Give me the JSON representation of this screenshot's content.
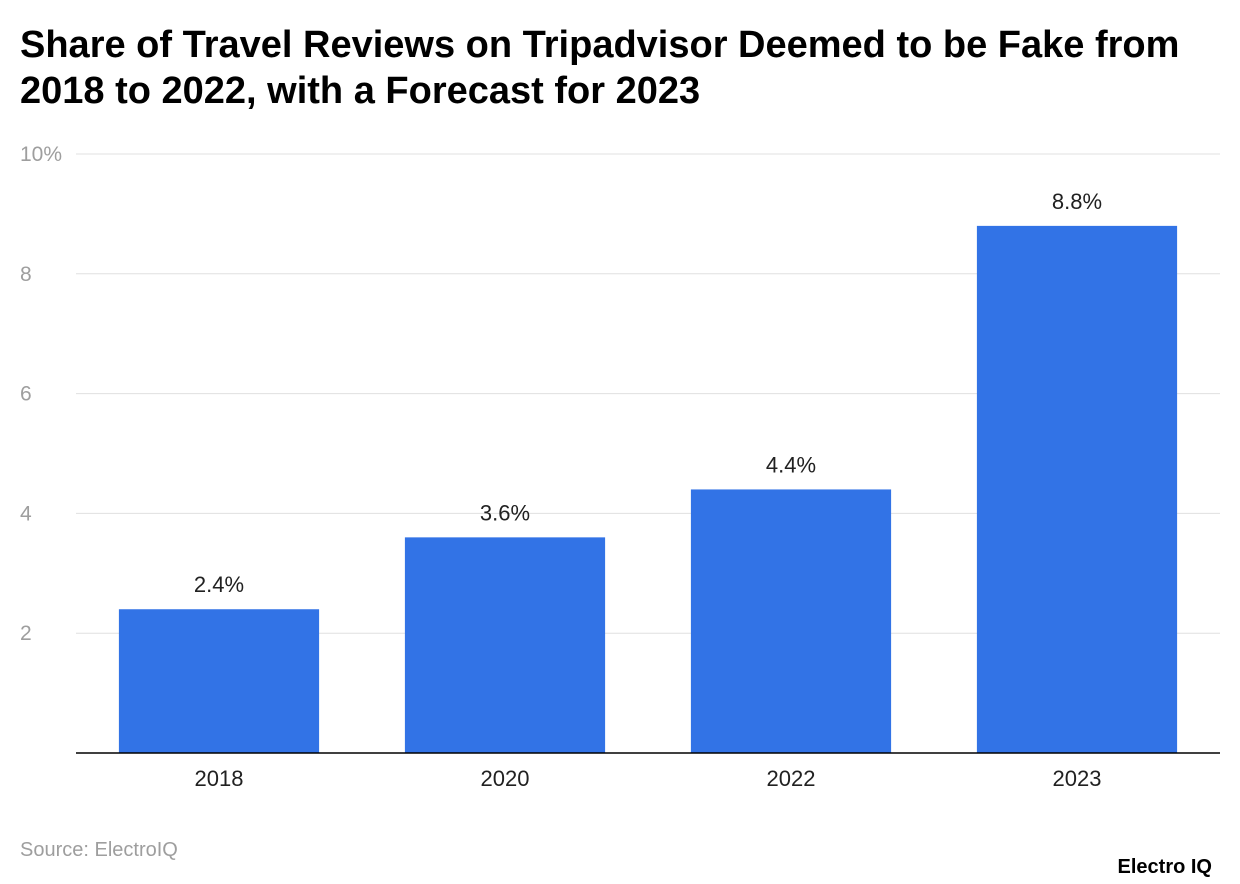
{
  "chart_data": {
    "type": "bar",
    "title": "Share of Travel Reviews on Tripadvisor Deemed to be Fake from 2018 to 2022, with a Forecast for 2023",
    "categories": [
      "2018",
      "2020",
      "2022",
      "2023"
    ],
    "values": [
      2.4,
      3.6,
      4.4,
      8.8
    ],
    "data_labels": [
      "2.4%",
      "3.6%",
      "4.4%",
      "8.8%"
    ],
    "ylim": [
      0,
      10
    ],
    "yticks": [
      2,
      4,
      6,
      8,
      10
    ],
    "ytick_labels": [
      "2",
      "4",
      "6",
      "8",
      "10%"
    ],
    "xlabel": "",
    "ylabel": "",
    "grid": true,
    "legend": "none",
    "bar_color": "#3273e6"
  },
  "footer": {
    "source": "Source: ElectroIQ",
    "brand": "Electro IQ"
  }
}
